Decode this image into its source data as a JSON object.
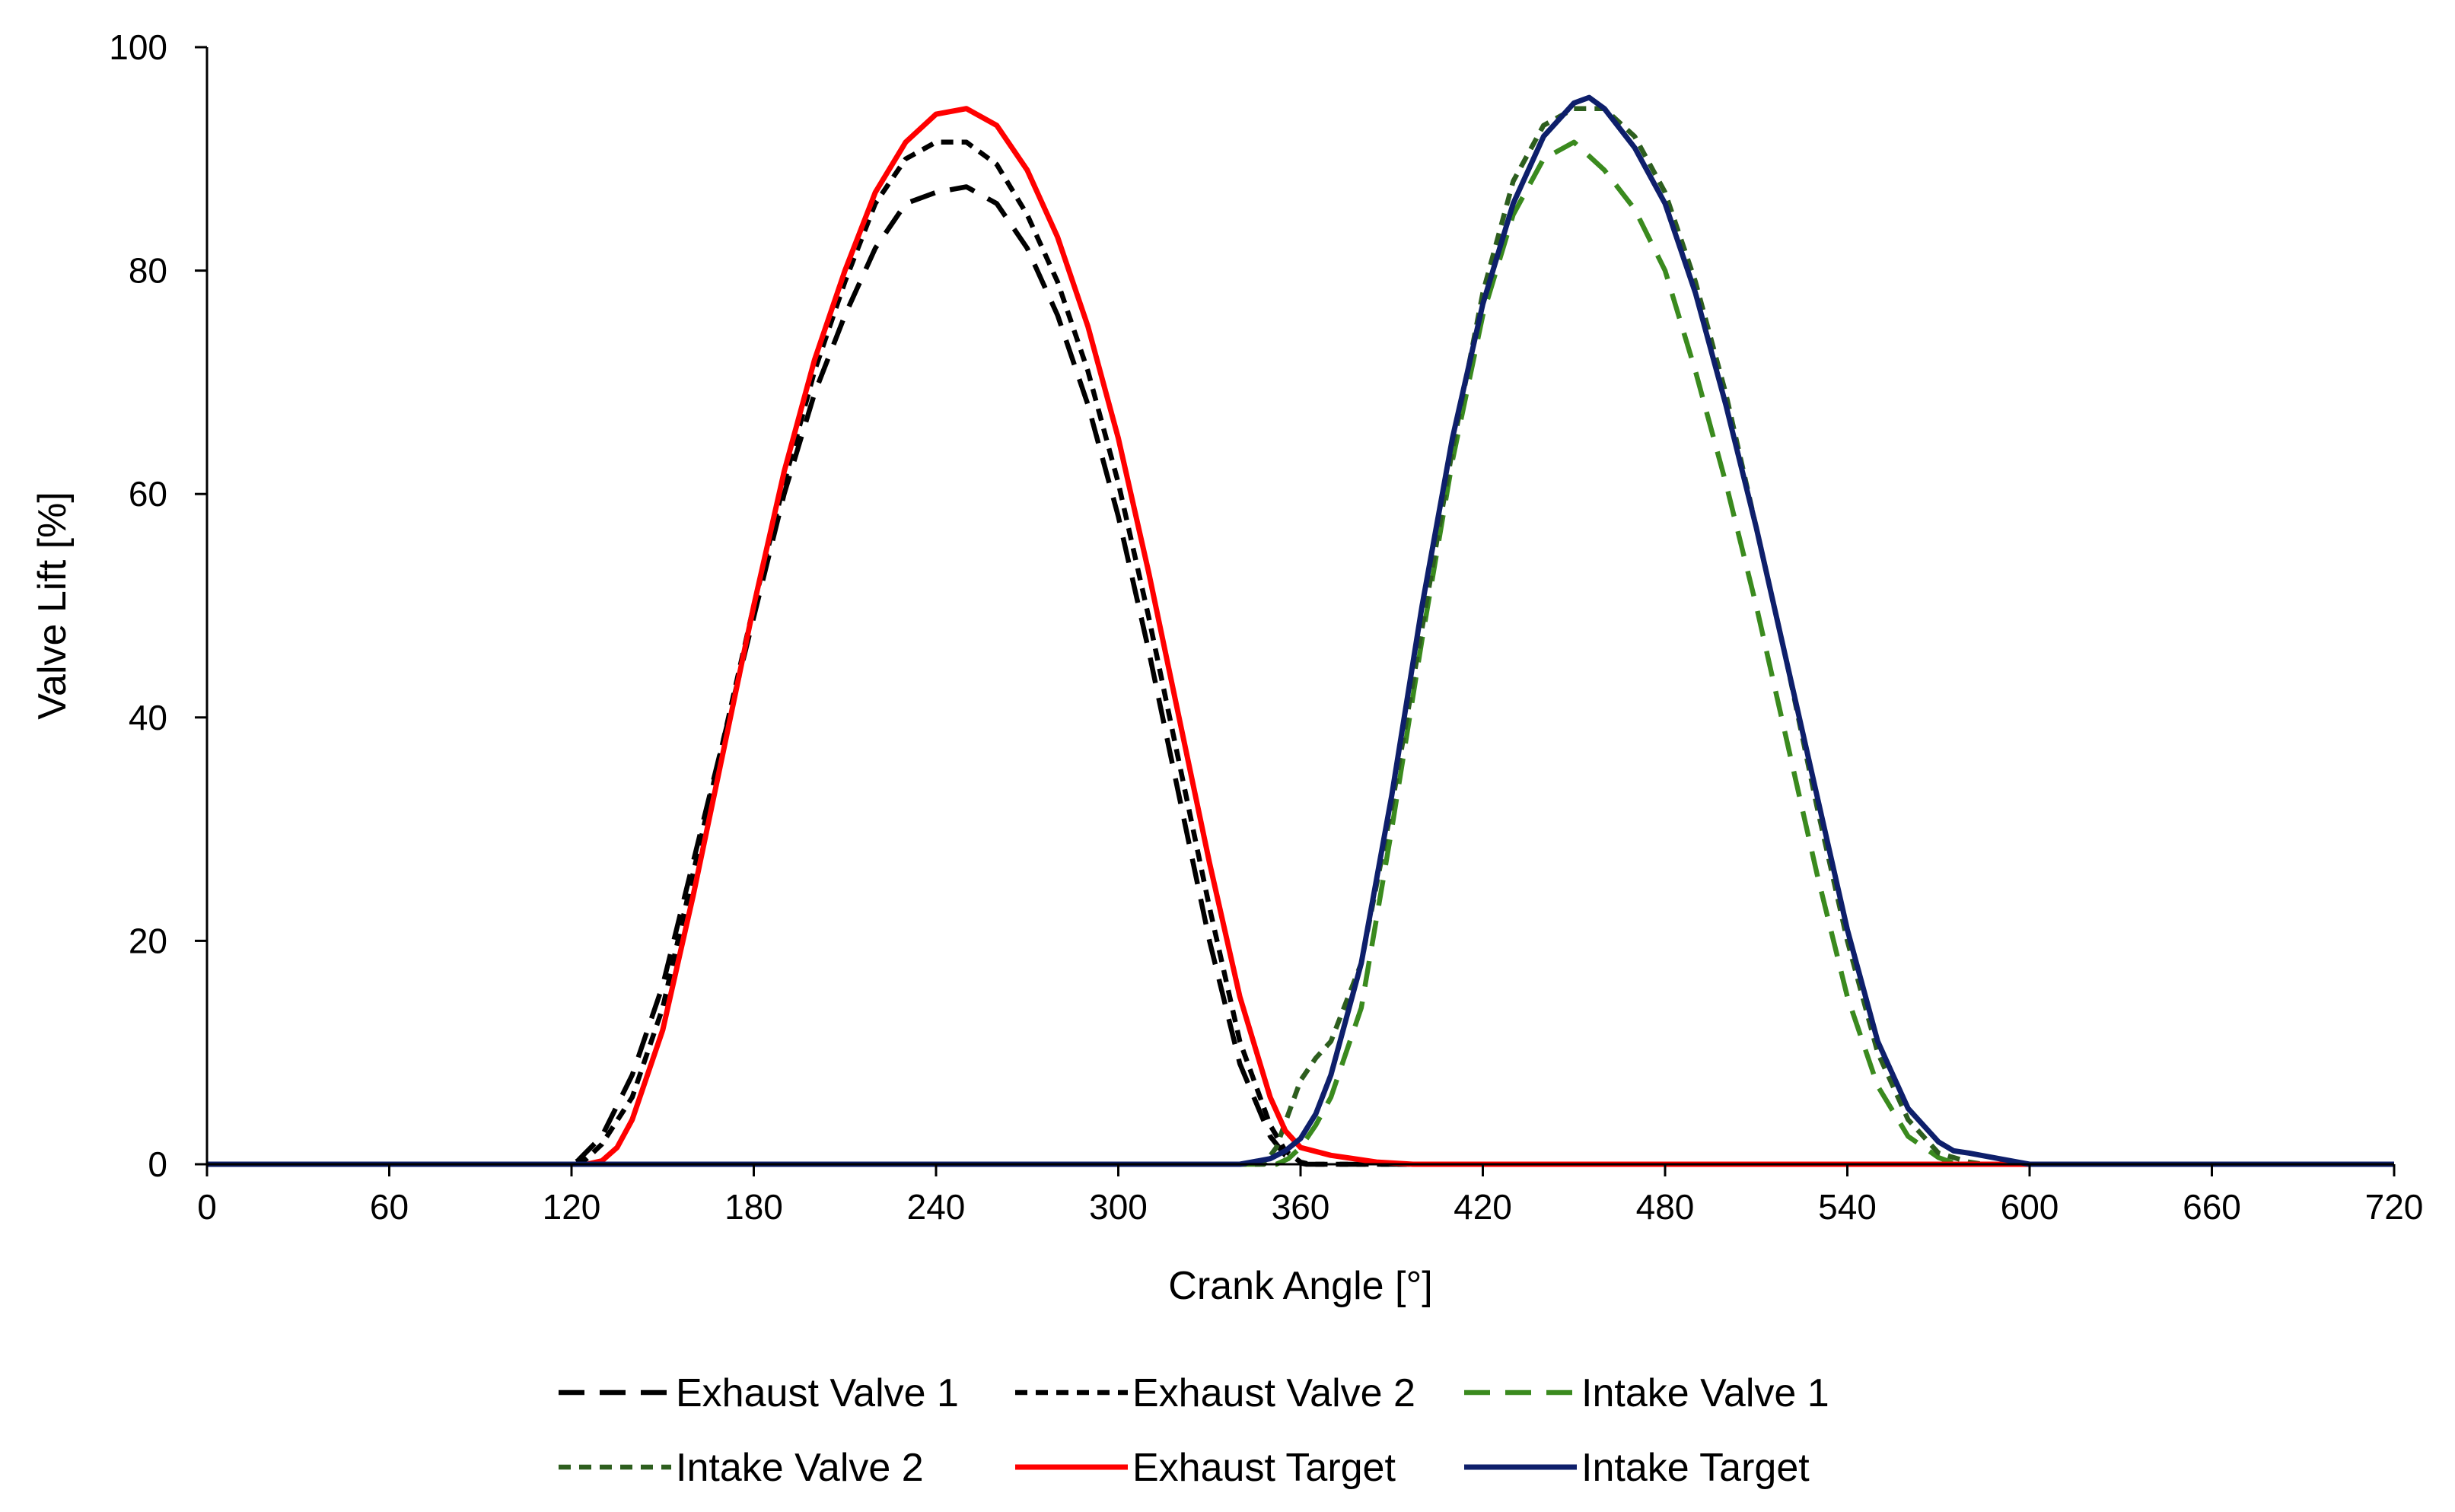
{
  "chart_data": {
    "type": "line",
    "xlabel": "Crank Angle [°]",
    "ylabel": "Valve Lift [%]",
    "xlim": [
      0,
      720
    ],
    "ylim": [
      0,
      100
    ],
    "xticks": [
      0,
      60,
      120,
      180,
      240,
      300,
      360,
      420,
      480,
      540,
      600,
      660,
      720
    ],
    "yticks": [
      0,
      20,
      40,
      60,
      80,
      100
    ],
    "grid": false,
    "legend_position": "bottom",
    "series": [
      {
        "name": "Exhaust Valve 1",
        "color": "#000000",
        "style": "long-dash",
        "x": [
          0,
          120,
          122,
          130,
          140,
          150,
          160,
          170,
          180,
          190,
          200,
          210,
          220,
          230,
          240,
          250,
          260,
          270,
          280,
          290,
          300,
          310,
          320,
          330,
          340,
          350,
          355,
          360,
          362,
          720
        ],
        "y": [
          0,
          0,
          0.3,
          2.5,
          8,
          16,
          27,
          38,
          49,
          60,
          69,
          76,
          82,
          86,
          87,
          87.5,
          86,
          82,
          76,
          68,
          58,
          46,
          33,
          20,
          9,
          2.5,
          0.8,
          0.1,
          0,
          0
        ]
      },
      {
        "name": "Exhaust Valve 2",
        "color": "#000000",
        "style": "short-dash",
        "x": [
          0,
          122,
          125,
          130,
          140,
          150,
          160,
          170,
          180,
          190,
          200,
          210,
          220,
          230,
          240,
          250,
          260,
          270,
          280,
          290,
          300,
          310,
          320,
          330,
          340,
          350,
          355,
          360,
          363,
          720
        ],
        "y": [
          0,
          0,
          0.5,
          1.8,
          6,
          14,
          26,
          38,
          50,
          61,
          71,
          79,
          86,
          90,
          91.5,
          91.5,
          89.5,
          85,
          79,
          71,
          61,
          49,
          36,
          23,
          11,
          3.5,
          1.2,
          0.2,
          0,
          0
        ]
      },
      {
        "name": "Intake Valve 1",
        "color": "#3a8a1e",
        "style": "long-dash",
        "x": [
          0,
          352,
          356,
          360,
          365,
          370,
          380,
          390,
          400,
          410,
          420,
          430,
          440,
          450,
          460,
          470,
          480,
          490,
          500,
          510,
          520,
          530,
          540,
          550,
          560,
          570,
          575,
          580,
          720
        ],
        "y": [
          0,
          0,
          0.5,
          1.5,
          3.5,
          6,
          14,
          30,
          47,
          63,
          76,
          85,
          90,
          91.5,
          89,
          85.5,
          80,
          71,
          61,
          50,
          38,
          26,
          15,
          7,
          2.5,
          0.6,
          0.1,
          0,
          0
        ]
      },
      {
        "name": "Intake Valve 2",
        "color": "#2d5e1e",
        "style": "short-dash",
        "x": [
          0,
          348,
          352,
          356,
          360,
          365,
          370,
          380,
          390,
          400,
          410,
          420,
          430,
          440,
          450,
          460,
          470,
          480,
          490,
          500,
          510,
          520,
          530,
          540,
          550,
          560,
          570,
          580,
          585,
          720
        ],
        "y": [
          0,
          0,
          1.5,
          4.5,
          7.5,
          9.5,
          11,
          18,
          32,
          48,
          64,
          78,
          88,
          93,
          94.5,
          94.5,
          92,
          87,
          79,
          69,
          57,
          45,
          32,
          20,
          10,
          4,
          1,
          0.2,
          0,
          0
        ]
      },
      {
        "name": "Exhaust Target",
        "color": "#ff0000",
        "style": "solid",
        "x": [
          0,
          125,
          130,
          135,
          140,
          150,
          160,
          170,
          180,
          190,
          200,
          210,
          220,
          230,
          240,
          250,
          260,
          270,
          280,
          290,
          300,
          310,
          320,
          330,
          340,
          350,
          355,
          360,
          370,
          385,
          397,
          720
        ],
        "y": [
          0,
          0,
          0.3,
          1.5,
          4,
          12,
          24,
          37,
          50,
          62,
          72,
          80,
          87,
          91.5,
          94,
          94.5,
          93,
          89,
          83,
          75,
          65,
          53,
          40,
          27,
          15,
          6,
          3,
          1.5,
          0.8,
          0.2,
          0,
          0
        ]
      },
      {
        "name": "Intake Target",
        "color": "#0e1f6b",
        "style": "solid",
        "x": [
          0,
          340,
          350,
          355,
          360,
          365,
          370,
          380,
          390,
          400,
          410,
          420,
          430,
          440,
          450,
          455,
          460,
          470,
          480,
          490,
          500,
          510,
          520,
          530,
          540,
          550,
          560,
          570,
          575,
          580,
          590,
          600,
          720
        ],
        "y": [
          0,
          0,
          0.5,
          1.2,
          2.3,
          4.5,
          8,
          18,
          33,
          50,
          65,
          77,
          86,
          92,
          95,
          95.5,
          94.5,
          91,
          86,
          78,
          68,
          57,
          45,
          33,
          21,
          11,
          5,
          2,
          1.2,
          1,
          0.5,
          0,
          0
        ]
      }
    ]
  }
}
